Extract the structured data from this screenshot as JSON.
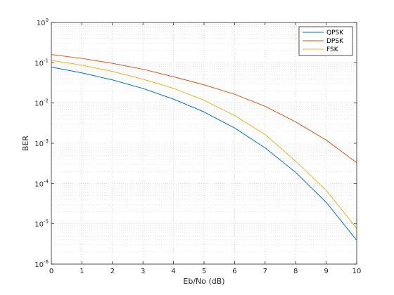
{
  "chart_data": {
    "type": "line",
    "xlabel": "Eb/No (dB)",
    "ylabel": "BER",
    "xlim": [
      0,
      10
    ],
    "ylim": [
      1e-06,
      1
    ],
    "yscale": "log",
    "grid": true,
    "minor_grid": true,
    "legend_position": "top-right",
    "x": [
      0,
      1,
      2,
      3,
      4,
      5,
      6,
      7,
      8,
      9,
      10
    ],
    "x_tick_labels": [
      "0",
      "1",
      "2",
      "3",
      "4",
      "5",
      "6",
      "7",
      "8",
      "9",
      "10"
    ],
    "y_tick_labels": [
      {
        "value": 1.0,
        "base": "10",
        "exp": "0"
      },
      {
        "value": 0.1,
        "base": "10",
        "exp": "-1"
      },
      {
        "value": 0.01,
        "base": "10",
        "exp": "-2"
      },
      {
        "value": 0.001,
        "base": "10",
        "exp": "-3"
      },
      {
        "value": 0.0001,
        "base": "10",
        "exp": "-4"
      },
      {
        "value": 1e-05,
        "base": "10",
        "exp": "-5"
      },
      {
        "value": 1e-06,
        "base": "10",
        "exp": "-6"
      }
    ],
    "series": [
      {
        "name": "QPSK",
        "color": "#0072BD",
        "values": [
          0.078,
          0.056,
          0.0375,
          0.023,
          0.0125,
          0.006,
          0.0024,
          0.00077,
          0.00019,
          3.43e-05,
          3.9e-06
        ]
      },
      {
        "name": "DPSK",
        "color": "#D95319",
        "values": [
          0.16,
          0.128,
          0.097,
          0.069,
          0.045,
          0.0283,
          0.0165,
          0.0083,
          0.0034,
          0.0012,
          0.00033
        ]
      },
      {
        "name": "FSK",
        "color": "#EDB120",
        "values": [
          0.115,
          0.087,
          0.061,
          0.039,
          0.0232,
          0.0117,
          0.0049,
          0.00165,
          0.00036,
          6.8e-05,
          7.7e-06
        ]
      }
    ]
  }
}
